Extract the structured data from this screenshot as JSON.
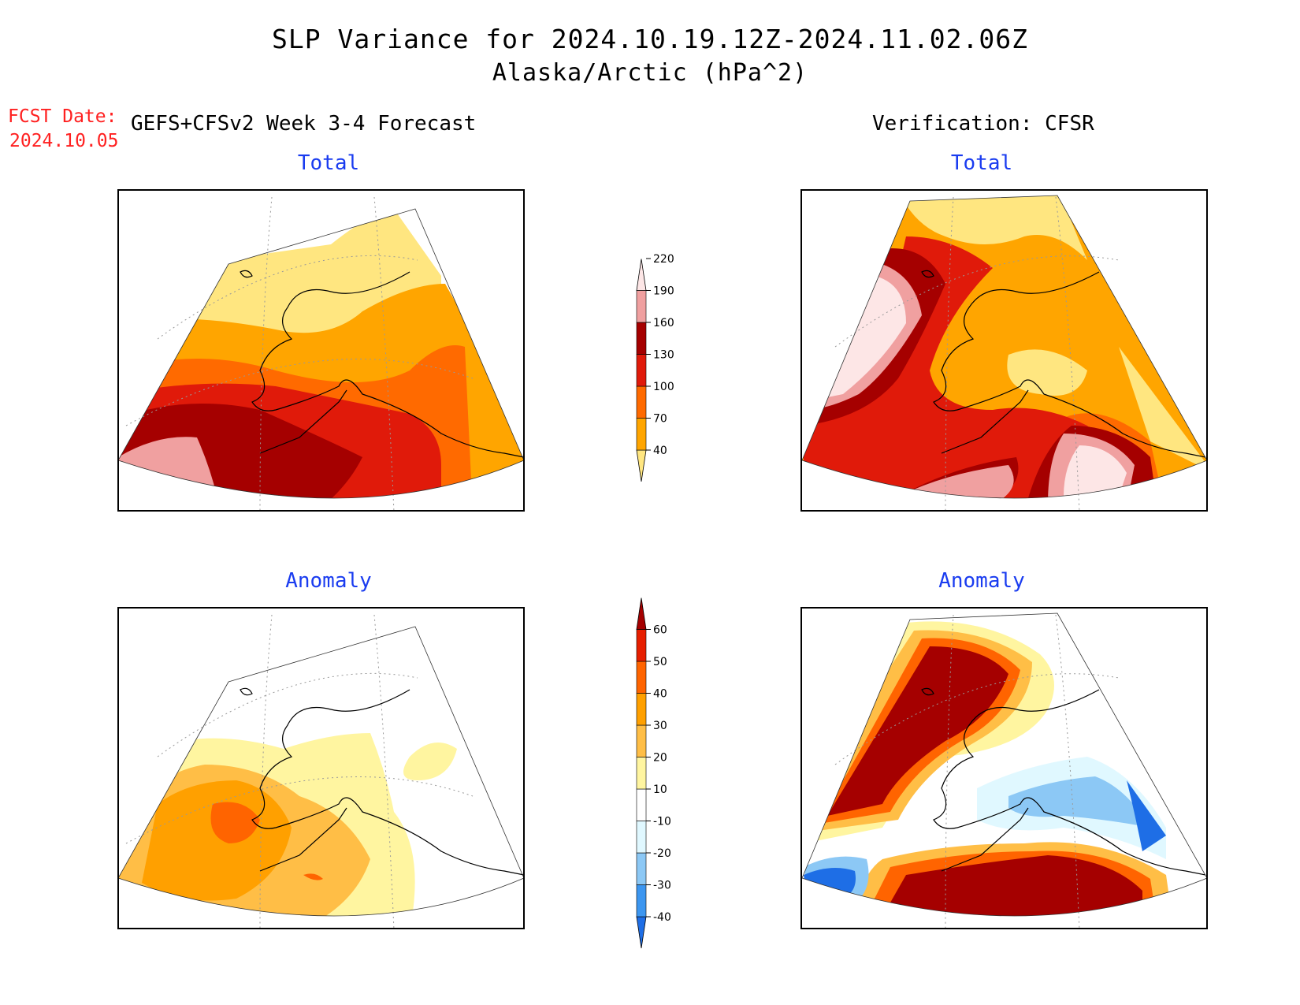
{
  "title": "SLP Variance for 2024.10.19.12Z-2024.11.02.06Z",
  "subtitle": "Alaska/Arctic (hPa^2)",
  "forecast": {
    "date_label": "FCST Date:",
    "date_value": "2024.10.05",
    "heading": "GEFS+CFSv2 Week 3-4 Forecast"
  },
  "verification": {
    "heading": "Verification: CFSR"
  },
  "panels": {
    "fcst_total": "Total",
    "fcst_anomaly": "Anomaly",
    "verif_total": "Total",
    "verif_anomaly": "Anomaly"
  },
  "colorbars": {
    "total": {
      "levels": [
        "40",
        "70",
        "100",
        "130",
        "160",
        "190",
        "220"
      ],
      "colors": [
        "#ffe680",
        "#ffa500",
        "#ff6a00",
        "#e01a0a",
        "#a50000",
        "#f0a0a0",
        "#fde6e6"
      ]
    },
    "anomaly": {
      "levels": [
        "-40",
        "-30",
        "-20",
        "-10",
        "10",
        "20",
        "30",
        "40",
        "50",
        "60"
      ],
      "colors": [
        "#1e6ee6",
        "#3c96f0",
        "#8cc8f5",
        "#e0f8ff",
        "#ffffff",
        "#fff5a0",
        "#ffbe46",
        "#ffa000",
        "#ff6400",
        "#e61e00",
        "#a50000"
      ]
    }
  },
  "colors": {
    "forecast_date": "#ff2020",
    "panel_title": "#1a3cf0"
  }
}
